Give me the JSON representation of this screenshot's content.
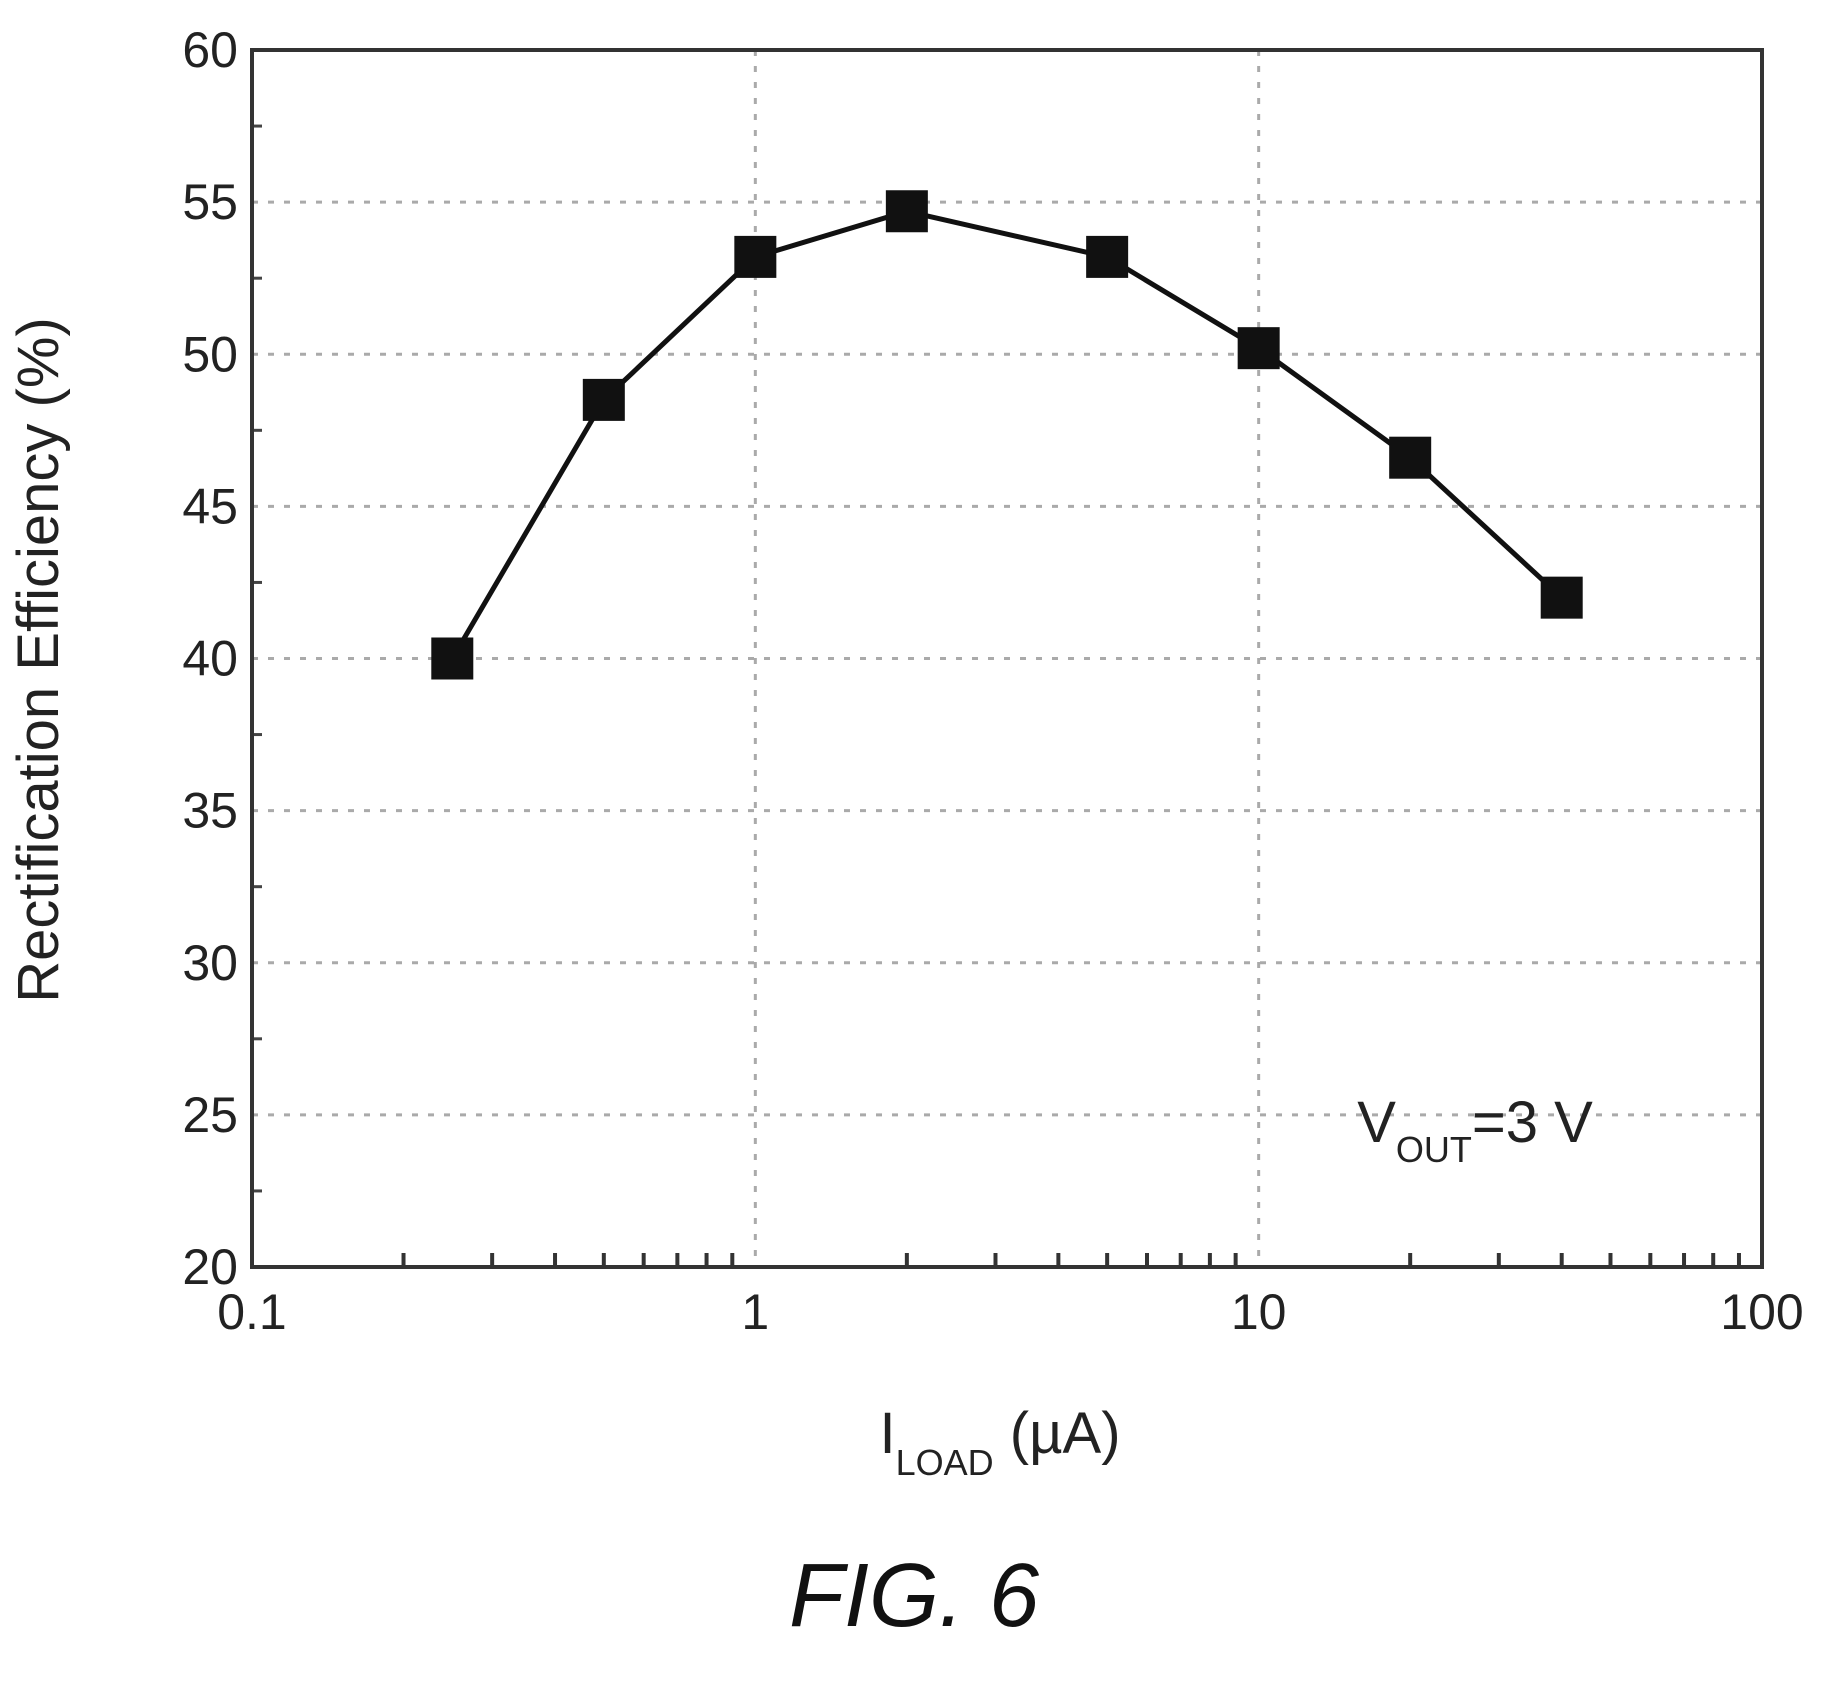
{
  "chart_data": {
    "type": "line",
    "x_scale": "log",
    "xlim": [
      0.1,
      100
    ],
    "ylim": [
      20,
      60
    ],
    "x_ticks": [
      "0.1",
      "1",
      "10",
      "100"
    ],
    "y_ticks": [
      "20",
      "25",
      "30",
      "35",
      "40",
      "45",
      "50",
      "55",
      "60"
    ],
    "ylabel": "Rectification Efficiency (%)",
    "xlabel": {
      "main": "I",
      "sub": "LOAD",
      "rest": " (µA)"
    },
    "annotation": {
      "main": "V",
      "sub": "OUT",
      "rest": "=3 V"
    },
    "grid": true,
    "marker": "square",
    "series": [
      {
        "x": [
          0.25,
          0.5,
          1,
          2,
          5,
          10,
          20,
          40
        ],
        "y": [
          40,
          48.5,
          53.2,
          54.7,
          53.2,
          50.2,
          46.6,
          42
        ]
      }
    ],
    "colors": {
      "line": "#111111",
      "marker": "#111111",
      "grid": "#aaaaaa",
      "frame": "#333333"
    }
  },
  "caption": "FIG. 6"
}
